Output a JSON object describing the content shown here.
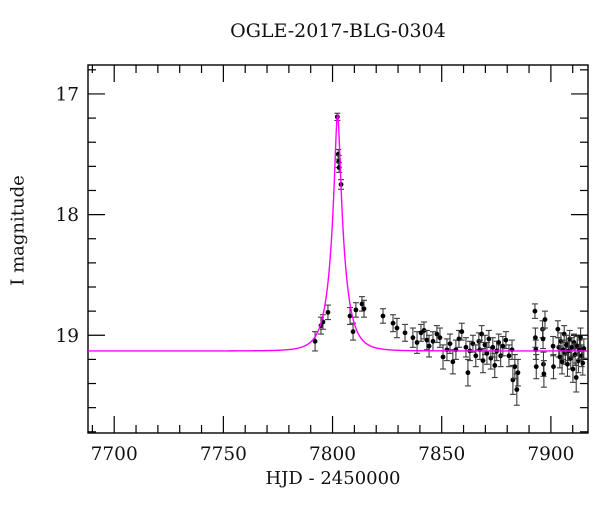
{
  "title": "OGLE-2017-BLG-0304",
  "chart_data": {
    "type": "scatter",
    "title": "OGLE-2017-BLG-0304",
    "xlabel": "HJD - 2450000",
    "ylabel": "I magnitude",
    "xlim": [
      7688,
      7917
    ],
    "ylim": [
      16.76,
      19.81
    ],
    "x_axis": {
      "major_ticks": [
        7700,
        7750,
        7800,
        7850,
        7900
      ],
      "minor_step": 10,
      "label": "HJD - 2450000"
    },
    "y_axis": {
      "major_ticks": [
        17,
        18,
        19
      ],
      "minor_step": 0.2,
      "label": "I magnitude",
      "inverted": true
    },
    "grid": false,
    "legend": "none",
    "model": {
      "name": "paczynski-microlensing-fit",
      "t0": 7802.3,
      "tE": 6.5,
      "u0": 0.165,
      "baseline_mag": 19.13
    },
    "colors": {
      "curve": "#ff00ff",
      "marker": "#000000",
      "errorbar": "#3c3c3c",
      "frame": "#000000",
      "background": "#ffffff"
    },
    "points_format": [
      "hjd_minus_2450000",
      "i_magnitude",
      "error_mag"
    ],
    "points": [
      [
        7792.0,
        19.05,
        0.08
      ],
      [
        7794.7,
        18.92,
        0.07
      ],
      [
        7795.6,
        18.89,
        0.06
      ],
      [
        7797.9,
        18.81,
        0.06
      ],
      [
        7802.2,
        17.19,
        0.03
      ],
      [
        7802.6,
        17.5,
        0.04
      ],
      [
        7802.8,
        17.56,
        0.05
      ],
      [
        7803.0,
        17.61,
        0.04
      ],
      [
        7803.9,
        17.75,
        0.04
      ],
      [
        7808.0,
        18.84,
        0.07
      ],
      [
        7809.4,
        18.97,
        0.07
      ],
      [
        7810.7,
        18.79,
        0.06
      ],
      [
        7813.5,
        18.74,
        0.06
      ],
      [
        7814.4,
        18.78,
        0.07
      ],
      [
        7823.1,
        18.84,
        0.06
      ],
      [
        7827.7,
        18.9,
        0.07
      ],
      [
        7829.5,
        18.94,
        0.08
      ],
      [
        7833.2,
        18.98,
        0.07
      ],
      [
        7836.8,
        19.02,
        0.08
      ],
      [
        7838.7,
        19.06,
        0.09
      ],
      [
        7840.5,
        18.98,
        0.07
      ],
      [
        7841.9,
        18.96,
        0.07
      ],
      [
        7843.2,
        19.04,
        0.08
      ],
      [
        7844.2,
        19.09,
        0.09
      ],
      [
        7846.0,
        19.05,
        0.08
      ],
      [
        7847.8,
        18.99,
        0.07
      ],
      [
        7849.2,
        19.02,
        0.08
      ],
      [
        7850.6,
        19.18,
        0.1
      ],
      [
        7852.4,
        19.12,
        0.09
      ],
      [
        7853.8,
        19.07,
        0.08
      ],
      [
        7855.1,
        19.22,
        0.1
      ],
      [
        7856.5,
        19.12,
        0.08
      ],
      [
        7857.9,
        19.03,
        0.07
      ],
      [
        7859.2,
        18.97,
        0.07
      ],
      [
        7861.1,
        19.1,
        0.08
      ],
      [
        7862.0,
        19.31,
        0.11
      ],
      [
        7862.9,
        19.13,
        0.08
      ],
      [
        7864.3,
        19.07,
        0.07
      ],
      [
        7865.6,
        19.17,
        0.09
      ],
      [
        7867.0,
        19.05,
        0.07
      ],
      [
        7867.5,
        19.12,
        0.08
      ],
      [
        7868.3,
        18.99,
        0.07
      ],
      [
        7868.9,
        19.21,
        0.1
      ],
      [
        7869.8,
        19.08,
        0.08
      ],
      [
        7870.7,
        19.15,
        0.09
      ],
      [
        7871.6,
        19.03,
        0.07
      ],
      [
        7872.5,
        19.19,
        0.09
      ],
      [
        7873.4,
        19.1,
        0.08
      ],
      [
        7874.3,
        19.25,
        0.1
      ],
      [
        7875.2,
        19.13,
        0.08
      ],
      [
        7876.1,
        19.06,
        0.07
      ],
      [
        7877.0,
        19.17,
        0.09
      ],
      [
        7878.0,
        19.09,
        0.08
      ],
      [
        7879.4,
        19.04,
        0.07
      ],
      [
        7880.8,
        19.17,
        0.09
      ],
      [
        7882.2,
        19.12,
        0.08
      ],
      [
        7882.6,
        19.37,
        0.12
      ],
      [
        7883.5,
        19.26,
        0.1
      ],
      [
        7884.4,
        19.45,
        0.13
      ],
      [
        7884.9,
        19.31,
        0.11
      ],
      [
        7892.7,
        18.8,
        0.06
      ],
      [
        7892.9,
        19.02,
        0.08
      ],
      [
        7893.1,
        19.12,
        0.08
      ],
      [
        7893.3,
        19.26,
        0.1
      ],
      [
        7896.2,
        18.95,
        0.07
      ],
      [
        7896.4,
        19.03,
        0.08
      ],
      [
        7896.6,
        19.24,
        0.1
      ],
      [
        7896.8,
        19.32,
        0.11
      ],
      [
        7897.3,
        18.87,
        0.07
      ],
      [
        7901.0,
        19.09,
        0.08
      ],
      [
        7901.2,
        19.26,
        0.1
      ],
      [
        7903.2,
        18.95,
        0.07
      ],
      [
        7903.6,
        19.1,
        0.08
      ],
      [
        7904.1,
        19.18,
        0.09
      ],
      [
        7904.6,
        19.05,
        0.07
      ],
      [
        7905.1,
        19.22,
        0.1
      ],
      [
        7905.6,
        19.12,
        0.08
      ],
      [
        7906.1,
        18.99,
        0.07
      ],
      [
        7906.6,
        19.15,
        0.09
      ],
      [
        7907.1,
        19.08,
        0.08
      ],
      [
        7907.6,
        19.24,
        0.1
      ],
      [
        7908.1,
        19.13,
        0.08
      ],
      [
        7908.6,
        19.03,
        0.07
      ],
      [
        7909.1,
        19.19,
        0.09
      ],
      [
        7909.6,
        19.1,
        0.08
      ],
      [
        7910.1,
        19.28,
        0.11
      ],
      [
        7910.6,
        19.06,
        0.07
      ],
      [
        7911.1,
        19.16,
        0.09
      ],
      [
        7911.6,
        19.35,
        0.12
      ],
      [
        7912.1,
        19.09,
        0.08
      ],
      [
        7912.6,
        19.21,
        0.1
      ],
      [
        7913.1,
        19.12,
        0.08
      ],
      [
        7913.6,
        19.02,
        0.08
      ],
      [
        7914.1,
        19.17,
        0.09
      ],
      [
        7914.6,
        19.23,
        0.1
      ],
      [
        7915.1,
        19.11,
        0.08
      ]
    ]
  }
}
